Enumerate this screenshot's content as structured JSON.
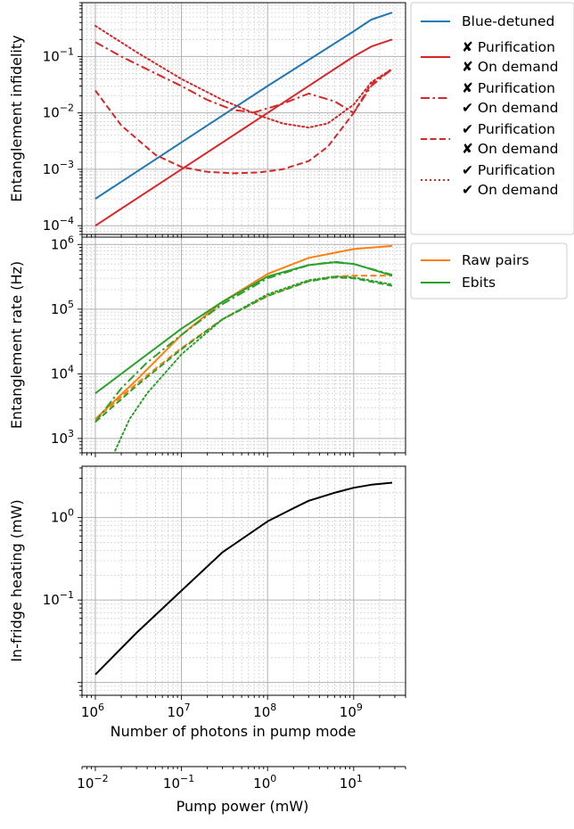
{
  "chart_data": [
    {
      "type": "line",
      "panel": "top",
      "ylabel": "Entanglement infidelity",
      "xscale": "log",
      "yscale": "log",
      "xlim": [
        700000,
        4000000000
      ],
      "ylim": [
        7e-05,
        0.9
      ],
      "grid": true,
      "legend_position": "outside-right",
      "yticks": [
        {
          "v": 0.0001,
          "m": "10",
          "e": "−4"
        },
        {
          "v": 0.001,
          "m": "10",
          "e": "−3"
        },
        {
          "v": 0.01,
          "m": "10",
          "e": "−2"
        },
        {
          "v": 0.1,
          "m": "10",
          "e": "−1"
        }
      ],
      "series": [
        {
          "key": "blue",
          "color": "#1f77b4",
          "dash": "solid",
          "legend": [
            "Blue-detuned"
          ],
          "x": [
            1000000,
            10000000,
            100000000,
            1000000000,
            1600000000,
            2800000000
          ],
          "y": [
            0.0003,
            0.003,
            0.03,
            0.28,
            0.45,
            0.6
          ]
        },
        {
          "key": "red-xx",
          "color": "#d62728",
          "dash": "solid",
          "legend": [
            "✘ Purification",
            "✘ On demand"
          ],
          "x": [
            1000000,
            10000000,
            100000000,
            1000000000,
            1600000000,
            2800000000
          ],
          "y": [
            0.0001,
            0.001,
            0.01,
            0.1,
            0.15,
            0.2
          ]
        },
        {
          "key": "red-xc",
          "color": "#d62728",
          "dash": "dashdot",
          "legend": [
            "✘ Purification",
            "✔ On demand"
          ],
          "x": [
            1000000,
            2000000,
            5000000,
            10000000,
            20000000,
            40000000,
            70000000,
            150000000,
            300000000,
            600000000,
            1000000000,
            1600000000,
            2800000000
          ],
          "y": [
            0.18,
            0.1,
            0.05,
            0.03,
            0.017,
            0.0112,
            0.0102,
            0.0145,
            0.022,
            0.016,
            0.01,
            0.03,
            0.06
          ]
        },
        {
          "key": "red-cx",
          "color": "#d62728",
          "dash": "dashed",
          "legend": [
            "✔ Purification",
            "✘ On demand"
          ],
          "x": [
            1000000,
            2000000,
            5000000,
            10000000,
            20000000,
            40000000,
            80000000,
            150000000,
            300000000,
            500000000,
            1000000000,
            1600000000,
            2800000000
          ],
          "y": [
            0.025,
            0.006,
            0.0018,
            0.0011,
            0.0009,
            0.00085,
            0.00088,
            0.001,
            0.0014,
            0.0025,
            0.01,
            0.033,
            0.06
          ]
        },
        {
          "key": "red-cc",
          "color": "#d62728",
          "dash": "dotted",
          "legend": [
            "✔ Purification",
            "✔ On demand"
          ],
          "x": [
            1000000,
            3000000,
            10000000,
            30000000,
            80000000,
            150000000,
            300000000,
            500000000,
            1000000000,
            1600000000,
            2800000000
          ],
          "y": [
            0.35,
            0.12,
            0.04,
            0.017,
            0.009,
            0.0065,
            0.0055,
            0.0065,
            0.014,
            0.035,
            0.06
          ]
        }
      ]
    },
    {
      "type": "line",
      "panel": "middle",
      "ylabel": "Entanglement rate (Hz)",
      "xscale": "log",
      "yscale": "log",
      "xlim": [
        700000,
        4000000000
      ],
      "ylim": [
        600,
        1300000
      ],
      "grid": true,
      "legend_position": "outside-right",
      "yticks": [
        {
          "v": 1000,
          "m": "10",
          "e": "3"
        },
        {
          "v": 10000,
          "m": "10",
          "e": "4"
        },
        {
          "v": 100000,
          "m": "10",
          "e": "5"
        },
        {
          "v": 1000000,
          "m": "10",
          "e": "6"
        }
      ],
      "legend": [
        {
          "label": "Raw pairs",
          "color": "#ff7f0e"
        },
        {
          "label": "Ebits",
          "color": "#2ca02c"
        }
      ],
      "series": [
        {
          "key": "raw-solid",
          "color": "#ff7f0e",
          "dash": "solid",
          "x": [
            1000000,
            3000000,
            10000000,
            30000000,
            100000000,
            300000000,
            1000000000,
            2800000000
          ],
          "y": [
            2000,
            8000,
            40000,
            130000,
            350000,
            620000,
            850000,
            950000
          ]
        },
        {
          "key": "raw-dashed",
          "color": "#ff7f0e",
          "dash": "dashed",
          "x": [
            1000000,
            3000000,
            10000000,
            30000000,
            100000000,
            300000000,
            600000000,
            1000000000,
            2800000000
          ],
          "y": [
            2000,
            7000,
            25000,
            70000,
            160000,
            270000,
            320000,
            330000,
            330000
          ]
        },
        {
          "key": "ebits-solid",
          "color": "#2ca02c",
          "dash": "solid",
          "x": [
            1000000,
            3000000,
            10000000,
            30000000,
            100000000,
            300000000,
            600000000,
            1000000000,
            2800000000
          ],
          "y": [
            5000,
            15000,
            50000,
            130000,
            320000,
            480000,
            530000,
            500000,
            330000
          ]
        },
        {
          "key": "ebits-dashdot",
          "color": "#2ca02c",
          "dash": "dashdot",
          "x": [
            1000000,
            2000000,
            4000000,
            10000000,
            30000000,
            100000000,
            300000000,
            600000000,
            1000000000,
            2800000000
          ],
          "y": [
            1800,
            6000,
            15000,
            40000,
            120000,
            300000,
            480000,
            540000,
            500000,
            340000
          ]
        },
        {
          "key": "ebits-dashed",
          "color": "#2ca02c",
          "dash": "dashed",
          "x": [
            1000000,
            3000000,
            10000000,
            30000000,
            100000000,
            300000000,
            600000000,
            1000000000,
            2800000000
          ],
          "y": [
            1800,
            6500,
            24000,
            70000,
            160000,
            270000,
            310000,
            300000,
            230000
          ]
        },
        {
          "key": "ebits-dotted",
          "color": "#2ca02c",
          "dash": "dotted",
          "x": [
            1700000,
            2500000,
            4000000,
            10000000,
            30000000,
            100000000,
            300000000,
            600000000,
            1000000000,
            2800000000
          ],
          "y": [
            650,
            2000,
            5000,
            20000,
            70000,
            170000,
            280000,
            320000,
            310000,
            240000
          ]
        }
      ]
    },
    {
      "type": "line",
      "panel": "bottom",
      "ylabel": "In-fridge heating (mW)",
      "xlabel": "Number of photons in pump mode",
      "xscale": "log",
      "yscale": "log",
      "xlim": [
        700000,
        4000000000
      ],
      "ylim": [
        0.007,
        4.2
      ],
      "grid": true,
      "xticks": [
        {
          "v": 1000000,
          "m": "10",
          "e": "6"
        },
        {
          "v": 10000000,
          "m": "10",
          "e": "7"
        },
        {
          "v": 100000000,
          "m": "10",
          "e": "8"
        },
        {
          "v": 1000000000,
          "m": "10",
          "e": "9"
        }
      ],
      "yticks": [
        {
          "v": 0.1,
          "m": "10",
          "e": "−1"
        },
        {
          "v": 1,
          "m": "10",
          "e": "0"
        }
      ],
      "series": [
        {
          "key": "heat",
          "color": "#000000",
          "dash": "solid",
          "x": [
            1000000,
            3000000,
            10000000,
            30000000,
            100000000,
            200000000,
            300000000,
            600000000,
            1000000000,
            1600000000,
            2800000000
          ],
          "y": [
            0.0125,
            0.04,
            0.13,
            0.38,
            0.9,
            1.3,
            1.6,
            2.0,
            2.3,
            2.5,
            2.65
          ]
        }
      ]
    },
    {
      "type": "axis",
      "panel": "secondary-x",
      "xlabel": "Pump power (mW)",
      "xscale": "log",
      "xlim": [
        0.007,
        40
      ],
      "xticks": [
        {
          "v": 0.01,
          "m": "10",
          "e": "−2"
        },
        {
          "v": 0.1,
          "m": "10",
          "e": "−1"
        },
        {
          "v": 1,
          "m": "10",
          "e": "0"
        },
        {
          "v": 10,
          "m": "10",
          "e": "1"
        }
      ]
    }
  ]
}
